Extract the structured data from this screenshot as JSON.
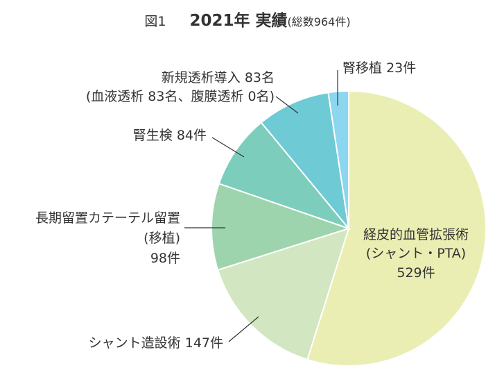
{
  "figure_label": "図1",
  "main_title": "2021年 実績",
  "total_note": "(総数964件)",
  "chart_data": {
    "type": "pie",
    "title": "2021年 実績",
    "total": 964,
    "slices": [
      {
        "name": "経皮的血管拡張術",
        "sub": "(シャント・PTA)",
        "count": "529件",
        "value": 529,
        "color": "#eaeeb2"
      },
      {
        "name": "シャント造設術",
        "count": "147件",
        "value": 147,
        "color": "#d2e6c1"
      },
      {
        "name": "長期留置カテーテル留置",
        "sub": "(移植)",
        "count": "98件",
        "value": 98,
        "color": "#9dd4ad"
      },
      {
        "name": "腎生検",
        "count": "84件",
        "value": 84,
        "color": "#7dcdbd"
      },
      {
        "name": "新規透析導入",
        "count": "83名",
        "sub": "(血液透析 83名、腹膜透析 0名)",
        "value": 83,
        "color": "#6ecad5"
      },
      {
        "name": "腎移植",
        "count": "23件",
        "value": 23,
        "color": "#8dd6f0"
      }
    ]
  }
}
